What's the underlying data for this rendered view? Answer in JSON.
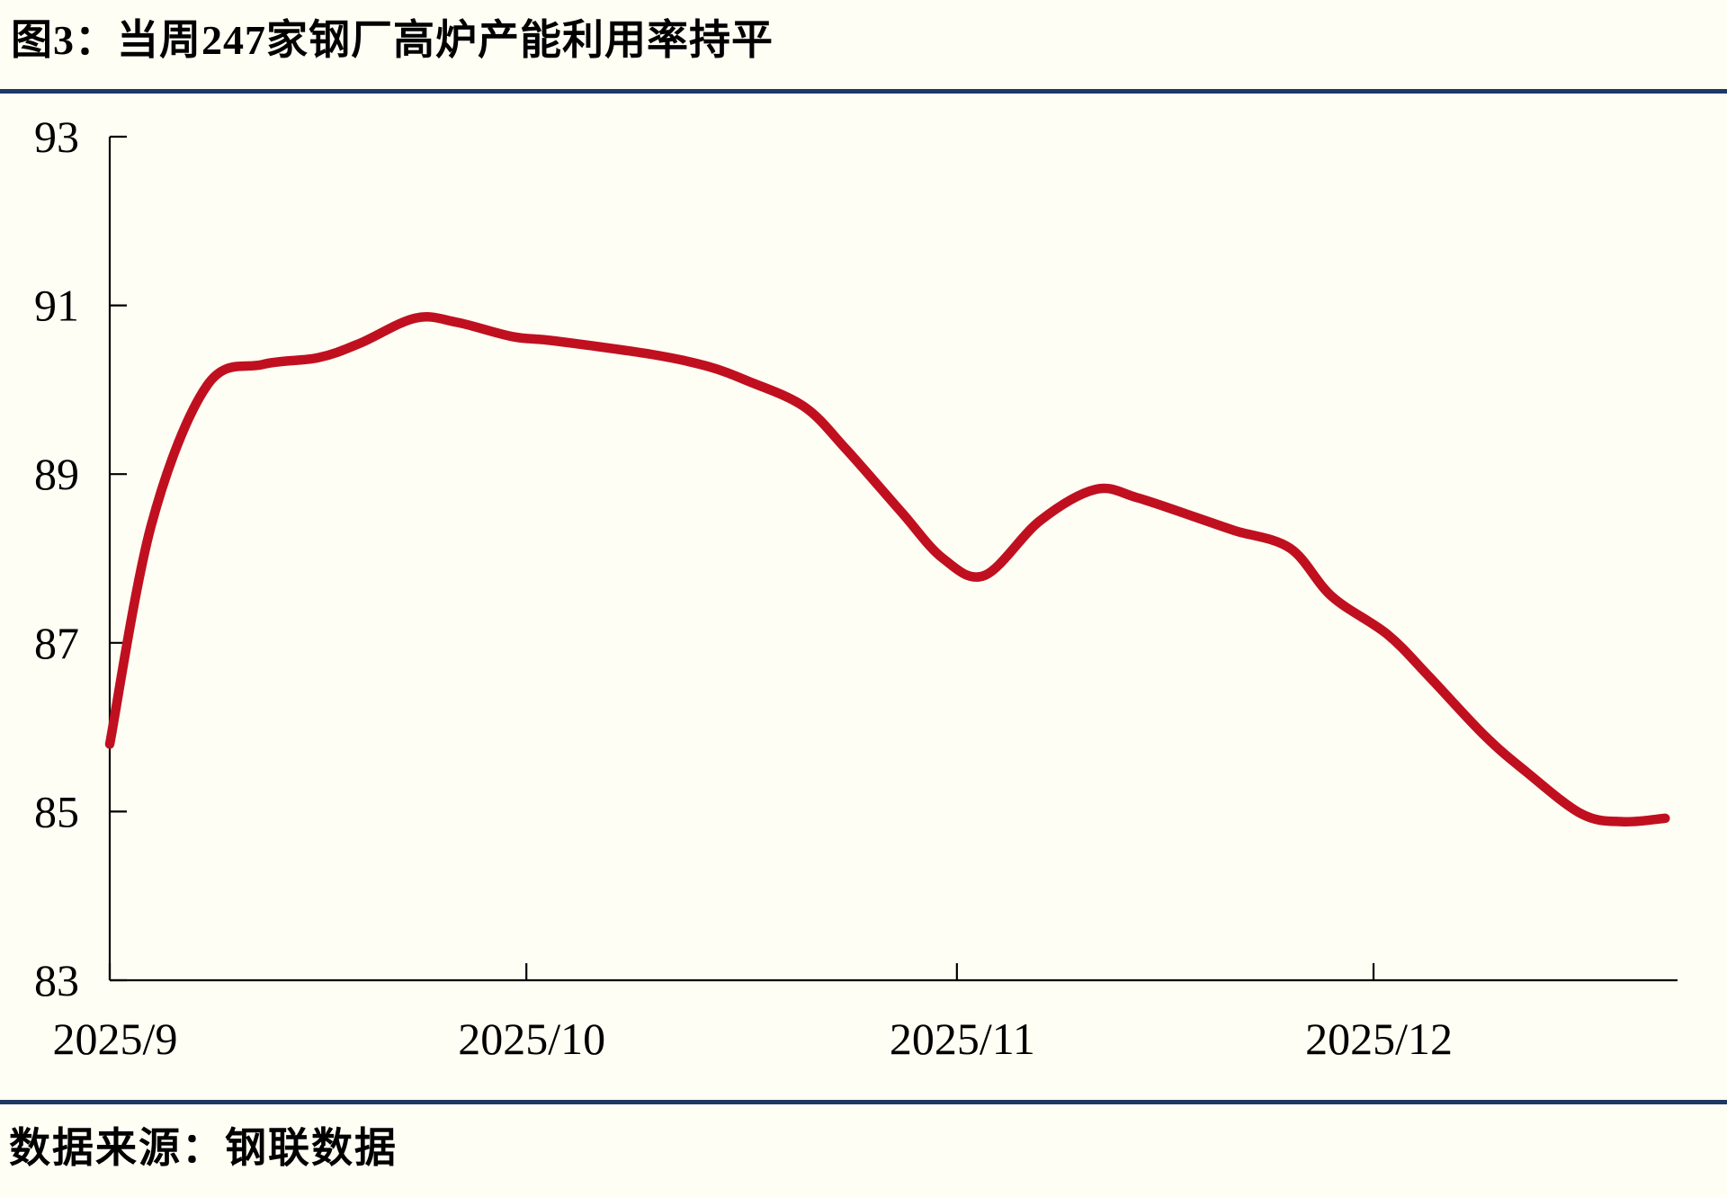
{
  "header": {
    "title": "图3：当周247家钢厂高炉产能利用率持平"
  },
  "footer": {
    "source": "数据来源：钢联数据"
  },
  "colors": {
    "line": "#C01020",
    "rule": "#1F3864",
    "axis": "#000000",
    "text": "#000000",
    "background": "#FFFEF4"
  },
  "chart_data": {
    "type": "line",
    "title": "当周247家钢厂高炉产能利用率持平",
    "xlabel": "",
    "ylabel": "",
    "ylim": [
      83,
      93
    ],
    "xlim": [
      "2025-09-01",
      "2025-12-23"
    ],
    "y_ticks": [
      93,
      91,
      89,
      87,
      85,
      83
    ],
    "x_ticks": [
      {
        "date": "2025-09-01",
        "label": "2025/9"
      },
      {
        "date": "2025-10-01",
        "label": "2025/10"
      },
      {
        "date": "2025-11-01",
        "label": "2025/11"
      },
      {
        "date": "2025-12-01",
        "label": "2025/12"
      }
    ],
    "grid": false,
    "legend_position": "none",
    "smooth": true,
    "series": [
      {
        "name": "247家钢厂高炉产能利用率(%)",
        "color": "#C01020",
        "points": [
          {
            "date": "2025-09-01",
            "value": 85.8
          },
          {
            "date": "2025-09-04",
            "value": 88.4
          },
          {
            "date": "2025-09-08",
            "value": 90.05
          },
          {
            "date": "2025-09-12",
            "value": 90.3
          },
          {
            "date": "2025-09-16",
            "value": 90.38
          },
          {
            "date": "2025-09-19",
            "value": 90.55
          },
          {
            "date": "2025-09-23",
            "value": 90.85
          },
          {
            "date": "2025-09-26",
            "value": 90.8
          },
          {
            "date": "2025-09-30",
            "value": 90.63
          },
          {
            "date": "2025-10-03",
            "value": 90.58
          },
          {
            "date": "2025-10-10",
            "value": 90.42
          },
          {
            "date": "2025-10-14",
            "value": 90.28
          },
          {
            "date": "2025-10-17",
            "value": 90.1
          },
          {
            "date": "2025-10-21",
            "value": 89.8
          },
          {
            "date": "2025-10-24",
            "value": 89.3
          },
          {
            "date": "2025-10-28",
            "value": 88.55
          },
          {
            "date": "2025-10-31",
            "value": 88.0
          },
          {
            "date": "2025-11-03",
            "value": 87.8
          },
          {
            "date": "2025-11-07",
            "value": 88.45
          },
          {
            "date": "2025-11-11",
            "value": 88.82
          },
          {
            "date": "2025-11-14",
            "value": 88.72
          },
          {
            "date": "2025-11-18",
            "value": 88.5
          },
          {
            "date": "2025-11-21",
            "value": 88.33
          },
          {
            "date": "2025-11-25",
            "value": 88.12
          },
          {
            "date": "2025-11-28",
            "value": 87.55
          },
          {
            "date": "2025-12-02",
            "value": 87.1
          },
          {
            "date": "2025-12-05",
            "value": 86.6
          },
          {
            "date": "2025-12-09",
            "value": 85.9
          },
          {
            "date": "2025-12-12",
            "value": 85.47
          },
          {
            "date": "2025-12-16",
            "value": 84.97
          },
          {
            "date": "2025-12-19",
            "value": 84.88
          },
          {
            "date": "2025-12-22",
            "value": 84.92
          }
        ]
      }
    ]
  }
}
